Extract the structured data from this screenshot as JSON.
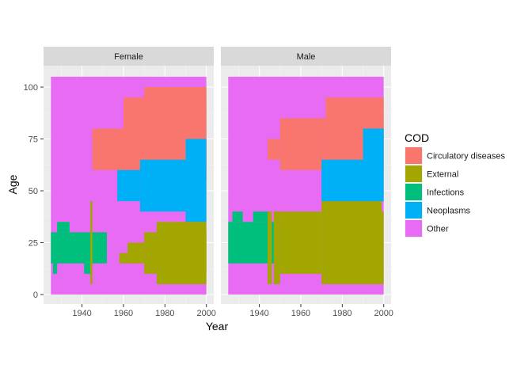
{
  "chart_data": {
    "type": "heatmap",
    "xlabel": "Year",
    "ylabel": "Age",
    "xlim": [
      1925,
      2000
    ],
    "ylim": [
      0,
      105
    ],
    "x_ticks": [
      1940,
      1960,
      1980,
      2000
    ],
    "y_ticks": [
      0,
      25,
      50,
      75,
      100
    ],
    "legend": {
      "title": "COD",
      "position": "right",
      "entries": [
        {
          "key": "circ",
          "label": "Circulatory diseases",
          "color": "#F8766D"
        },
        {
          "key": "ext",
          "label": "External",
          "color": "#A3A500"
        },
        {
          "key": "inf",
          "label": "Infections",
          "color": "#00BF7D"
        },
        {
          "key": "neo",
          "label": "Neoplasms",
          "color": "#00B0F6"
        },
        {
          "key": "oth",
          "label": "Other",
          "color": "#E76BF3"
        }
      ]
    },
    "panels": [
      {
        "label": "Female",
        "background": "oth",
        "regions": [
          {
            "cause": "inf",
            "x": [
              1925,
              1952
            ],
            "age": [
              15,
              30
            ]
          },
          {
            "cause": "inf",
            "x": [
              1928,
              1934
            ],
            "age": [
              30,
              35
            ]
          },
          {
            "cause": "inf",
            "x": [
              1926,
              1928
            ],
            "age": [
              10,
              15
            ]
          },
          {
            "cause": "inf",
            "x": [
              1941,
              1944
            ],
            "age": [
              10,
              15
            ]
          },
          {
            "cause": "ext",
            "x": [
              1944,
              1945
            ],
            "age": [
              5,
              45
            ]
          },
          {
            "cause": "circ",
            "x": [
              1945,
              1960
            ],
            "age": [
              60,
              80
            ]
          },
          {
            "cause": "circ",
            "x": [
              1960,
              2000
            ],
            "age": [
              60,
              95
            ]
          },
          {
            "cause": "circ",
            "x": [
              1970,
              2000
            ],
            "age": [
              55,
              100
            ]
          },
          {
            "cause": "neo",
            "x": [
              1957,
              1968
            ],
            "age": [
              45,
              60
            ]
          },
          {
            "cause": "neo",
            "x": [
              1968,
              1990
            ],
            "age": [
              40,
              65
            ]
          },
          {
            "cause": "neo",
            "x": [
              1990,
              2000
            ],
            "age": [
              35,
              75
            ]
          },
          {
            "cause": "ext",
            "x": [
              1958,
              1962
            ],
            "age": [
              15,
              20
            ]
          },
          {
            "cause": "ext",
            "x": [
              1962,
              1970
            ],
            "age": [
              15,
              25
            ]
          },
          {
            "cause": "ext",
            "x": [
              1970,
              2000
            ],
            "age": [
              10,
              30
            ]
          },
          {
            "cause": "ext",
            "x": [
              1976,
              2000
            ],
            "age": [
              5,
              35
            ]
          }
        ]
      },
      {
        "label": "Male",
        "background": "oth",
        "regions": [
          {
            "cause": "inf",
            "x": [
              1925,
              1950
            ],
            "age": [
              15,
              35
            ]
          },
          {
            "cause": "inf",
            "x": [
              1927,
              1932
            ],
            "age": [
              35,
              40
            ]
          },
          {
            "cause": "inf",
            "x": [
              1937,
              1945
            ],
            "age": [
              35,
              40
            ]
          },
          {
            "cause": "ext",
            "x": [
              1944,
              1946
            ],
            "age": [
              5,
              40
            ]
          },
          {
            "cause": "ext",
            "x": [
              1947,
              1950
            ],
            "age": [
              5,
              40
            ]
          },
          {
            "cause": "ext",
            "x": [
              1950,
              1970
            ],
            "age": [
              10,
              40
            ]
          },
          {
            "cause": "ext",
            "x": [
              1970,
              1999
            ],
            "age": [
              5,
              45
            ]
          },
          {
            "cause": "ext",
            "x": [
              1995,
              2000
            ],
            "age": [
              5,
              40
            ]
          },
          {
            "cause": "circ",
            "x": [
              1944,
              1950
            ],
            "age": [
              65,
              75
            ]
          },
          {
            "cause": "circ",
            "x": [
              1950,
              1972
            ],
            "age": [
              60,
              85
            ]
          },
          {
            "cause": "circ",
            "x": [
              1972,
              2000
            ],
            "age": [
              60,
              95
            ]
          },
          {
            "cause": "neo",
            "x": [
              1970,
              1990
            ],
            "age": [
              45,
              65
            ]
          },
          {
            "cause": "neo",
            "x": [
              1990,
              2000
            ],
            "age": [
              45,
              80
            ]
          }
        ]
      }
    ]
  }
}
